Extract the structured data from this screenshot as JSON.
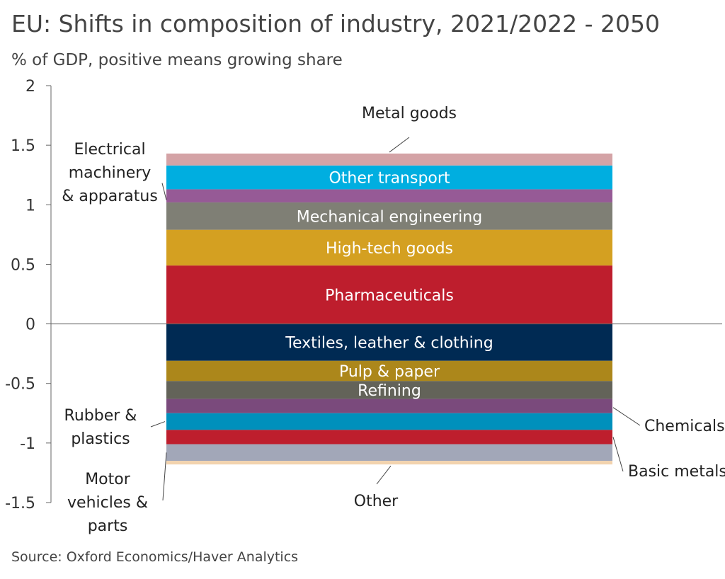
{
  "title": "EU: Shifts in composition of industry, 2021/2022 - 2050",
  "subtitle": "% of GDP, positive means growing share",
  "source": "Source: Oxford Economics/Haver Analytics",
  "chart_data": {
    "type": "bar",
    "stacked": true,
    "ylim": [
      -1.5,
      2
    ],
    "yticks": [
      2,
      1.5,
      1,
      0.5,
      0,
      -0.5,
      -1,
      -1.5
    ],
    "ytick_labels": [
      "2",
      "1.5",
      "1",
      "0.5",
      "0",
      "-0.5",
      "-1",
      "-1.5"
    ],
    "grid": false,
    "series": [
      {
        "name": "Pharmaceuticals",
        "value": 0.49,
        "color": "#be1e2d",
        "label_mode": "inside"
      },
      {
        "name": "High-tech goods",
        "value": 0.3,
        "color": "#d4a021",
        "label_mode": "inside"
      },
      {
        "name": "Mechanical engineering",
        "value": 0.23,
        "color": "#7f7f75",
        "label_mode": "inside"
      },
      {
        "name": "Electrical machinery & apparatus",
        "label_lines": [
          "Electrical",
          "machinery",
          "& apparatus"
        ],
        "value": 0.11,
        "color": "#965a96",
        "label_mode": "outside"
      },
      {
        "name": "Other transport",
        "value": 0.2,
        "color": "#00aee0",
        "label_mode": "inside"
      },
      {
        "name": "Metal goods",
        "value": 0.1,
        "color": "#d4a3a6",
        "label_mode": "outside"
      },
      {
        "name": "Textiles, leather & clothing",
        "value": -0.31,
        "color": "#002a53",
        "label_mode": "inside"
      },
      {
        "name": "Pulp & paper",
        "value": -0.17,
        "color": "#ac871b",
        "label_mode": "inside"
      },
      {
        "name": "Refining",
        "value": -0.15,
        "color": "#636359",
        "label_mode": "inside"
      },
      {
        "name": "Chemicals",
        "value": -0.12,
        "color": "#7a4a7c",
        "label_mode": "outside"
      },
      {
        "name": "Rubber & plastics",
        "label_lines": [
          "Rubber &",
          "plastics"
        ],
        "value": -0.14,
        "color": "#0090bc",
        "label_mode": "outside"
      },
      {
        "name": "Basic metals",
        "value": -0.12,
        "color": "#be1e2d",
        "label_mode": "outside"
      },
      {
        "name": "Motor vehicles & parts",
        "label_lines": [
          "Motor",
          "vehicles &",
          "parts"
        ],
        "value": -0.14,
        "color": "#a2a7b8",
        "label_mode": "outside"
      },
      {
        "name": "Other",
        "value": -0.03,
        "color": "#f2d3ae",
        "label_mode": "outside"
      }
    ]
  }
}
